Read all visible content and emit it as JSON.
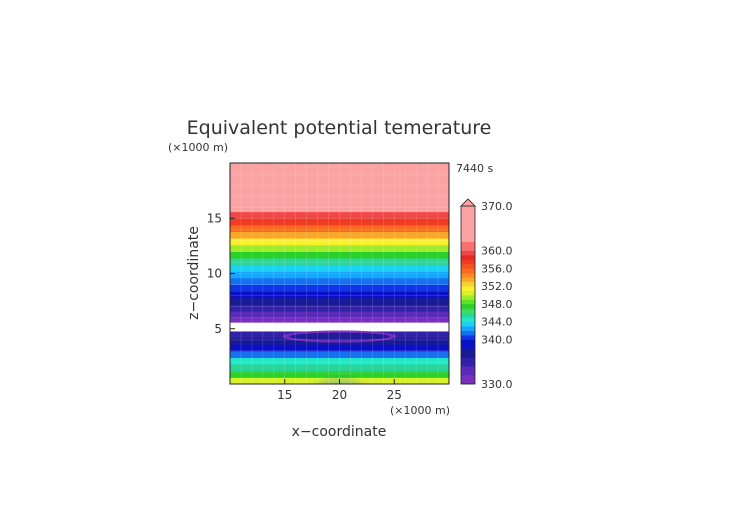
{
  "chart_data": {
    "type": "heatmap",
    "title": "Equivalent potential temerature",
    "time_label": "7440 s",
    "xlabel": "x−coordinate",
    "ylabel": "z−coordinate",
    "x_unit": "(×1000 m)",
    "y_unit": "(×1000 m)",
    "x_range": [
      10,
      30
    ],
    "y_range": [
      0,
      20
    ],
    "x_ticks": [
      15,
      20,
      25
    ],
    "y_ticks": [
      5,
      10,
      15
    ],
    "colorbar": {
      "range": [
        330,
        370
      ],
      "tick_labels": [
        "370.0",
        "360.0",
        "356.0",
        "352.0",
        "348.0",
        "344.0",
        "340.0",
        "330.0"
      ],
      "tick_values": [
        370,
        360,
        356,
        352,
        348,
        344,
        340,
        330
      ],
      "levels": [
        {
          "value": 330,
          "color": "#7b2fbf"
        },
        {
          "value": 332,
          "color": "#5a2bb8"
        },
        {
          "value": 334,
          "color": "#3320a8"
        },
        {
          "value": 336,
          "color": "#1a1a95"
        },
        {
          "value": 338,
          "color": "#0a10c8"
        },
        {
          "value": 340,
          "color": "#1034e6"
        },
        {
          "value": 341,
          "color": "#1870f0"
        },
        {
          "value": 342,
          "color": "#15a4ff"
        },
        {
          "value": 343,
          "color": "#1ad1f5"
        },
        {
          "value": 344,
          "color": "#20e8c8"
        },
        {
          "value": 345,
          "color": "#2ad598"
        },
        {
          "value": 346,
          "color": "#3cdc60"
        },
        {
          "value": 347,
          "color": "#2ad02a"
        },
        {
          "value": 348,
          "color": "#5fe12a"
        },
        {
          "value": 349,
          "color": "#a0ec2a"
        },
        {
          "value": 350,
          "color": "#d8f22a"
        },
        {
          "value": 351,
          "color": "#f8f02a"
        },
        {
          "value": 352,
          "color": "#f8d030"
        },
        {
          "value": 353,
          "color": "#f8a828"
        },
        {
          "value": 354,
          "color": "#f88820"
        },
        {
          "value": 355,
          "color": "#f86a20"
        },
        {
          "value": 356,
          "color": "#f85020"
        },
        {
          "value": 357,
          "color": "#f03a24"
        },
        {
          "value": 358,
          "color": "#e82828"
        },
        {
          "value": 359,
          "color": "#f04848"
        },
        {
          "value": 360,
          "color": "#f87070"
        },
        {
          "value": 362,
          "color": "#fba2a2"
        }
      ]
    },
    "horizontal_bands_bottom_to_top": [
      {
        "z": [
          0.0,
          0.6
        ],
        "value": 350
      },
      {
        "z": [
          0.6,
          1.2
        ],
        "value": 347
      },
      {
        "z": [
          1.2,
          1.8
        ],
        "value": 345
      },
      {
        "z": [
          1.8,
          2.4
        ],
        "value": 344
      },
      {
        "z": [
          2.4,
          3.0
        ],
        "value": 341
      },
      {
        "z": [
          3.0,
          3.6
        ],
        "value": 338
      },
      {
        "z": [
          3.6,
          4.2
        ],
        "value": 336
      },
      {
        "z": [
          4.2,
          4.8
        ],
        "value": 334
      },
      {
        "z": [
          4.8,
          5.6
        ],
        "value": 329
      },
      {
        "z": [
          5.6,
          6.0
        ],
        "value": 330
      },
      {
        "z": [
          6.0,
          6.6
        ],
        "value": 332
      },
      {
        "z": [
          6.6,
          7.2
        ],
        "value": 334
      },
      {
        "z": [
          7.2,
          7.8
        ],
        "value": 336
      },
      {
        "z": [
          7.8,
          8.4
        ],
        "value": 338
      },
      {
        "z": [
          8.4,
          9.0
        ],
        "value": 340
      },
      {
        "z": [
          9.0,
          9.6
        ],
        "value": 341
      },
      {
        "z": [
          9.6,
          10.2
        ],
        "value": 342
      },
      {
        "z": [
          10.2,
          10.8
        ],
        "value": 343
      },
      {
        "z": [
          10.8,
          11.4
        ],
        "value": 345
      },
      {
        "z": [
          11.4,
          12.0
        ],
        "value": 347
      },
      {
        "z": [
          12.0,
          12.6
        ],
        "value": 349
      },
      {
        "z": [
          12.6,
          13.2
        ],
        "value": 351
      },
      {
        "z": [
          13.2,
          13.8
        ],
        "value": 353
      },
      {
        "z": [
          13.8,
          14.4
        ],
        "value": 355
      },
      {
        "z": [
          14.4,
          15.0
        ],
        "value": 357
      },
      {
        "z": [
          15.0,
          15.6
        ],
        "value": 359
      },
      {
        "z": [
          15.6,
          20.0
        ],
        "value": 362
      }
    ],
    "features": [
      {
        "shape": "ellipse",
        "center": [
          20,
          4.3
        ],
        "radii": [
          5.2,
          0.55
        ],
        "value": 330
      },
      {
        "shape": "ellipse",
        "center": [
          20,
          4.3
        ],
        "radii": [
          4.6,
          0.35
        ],
        "value": 336
      },
      {
        "shape": "plume",
        "center_x": 20,
        "z": [
          0,
          4.5
        ],
        "value": 344
      }
    ]
  }
}
